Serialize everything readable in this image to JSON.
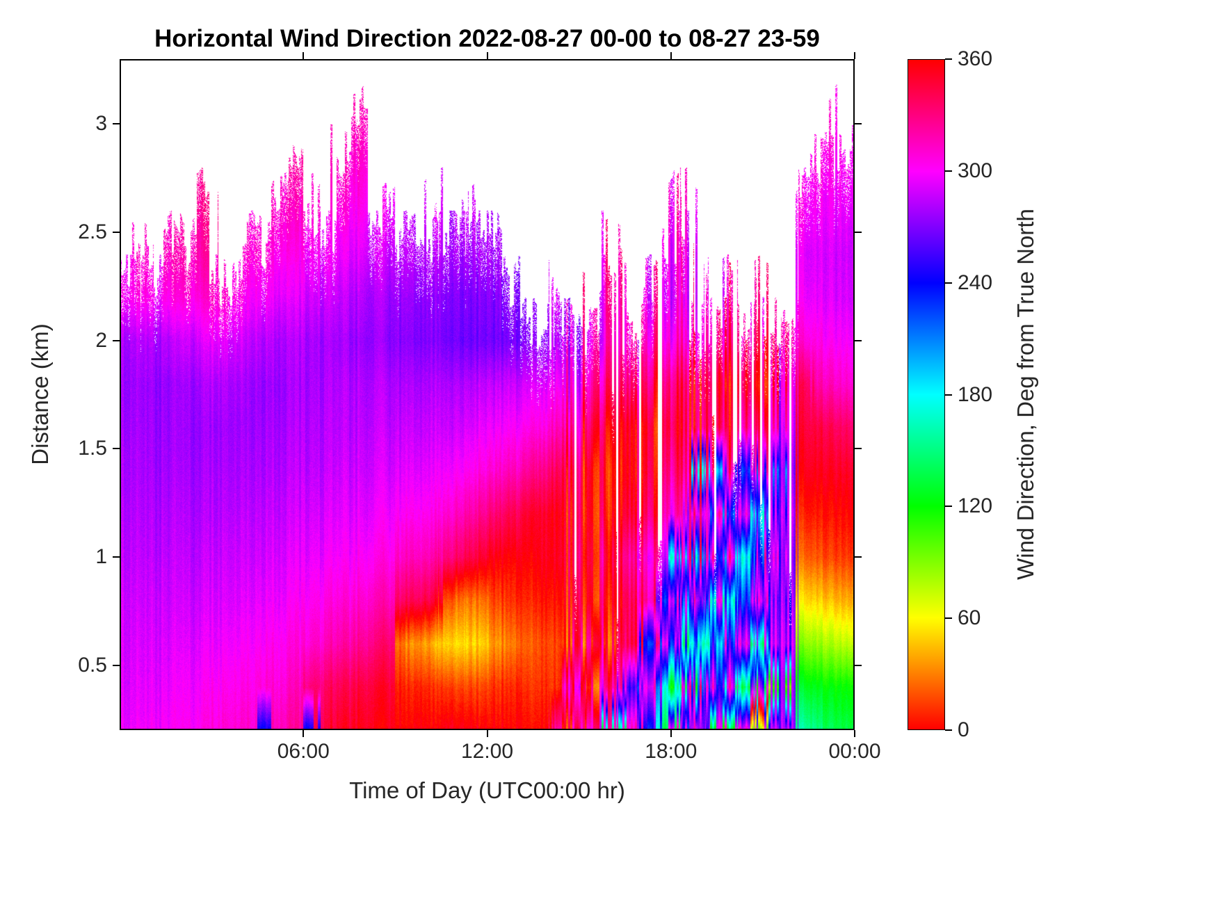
{
  "chart_data": {
    "type": "heatmap",
    "title": "Horizontal Wind Direction 2022-08-27 00-00 to 08-27 23-59",
    "xlabel": "Time of Day (UTC00:00 hr)",
    "ylabel": "Distance (km)",
    "colorbar_label": "Wind Direction, Deg from True North",
    "colormap": "hsv",
    "grid_on": false,
    "xlim_hours": [
      0,
      24
    ],
    "ylim": [
      0.2,
      3.3
    ],
    "clim": [
      0,
      360
    ],
    "x_ticks": [
      {
        "hour": 6,
        "label": "06:00"
      },
      {
        "hour": 12,
        "label": "12:00"
      },
      {
        "hour": 18,
        "label": "18:00"
      },
      {
        "hour": 24,
        "label": "00:00"
      }
    ],
    "y_ticks": [
      {
        "value": 0.5,
        "label": "0.5"
      },
      {
        "value": 1,
        "label": "1"
      },
      {
        "value": 1.5,
        "label": "1.5"
      },
      {
        "value": 2,
        "label": "2"
      },
      {
        "value": 2.5,
        "label": "2.5"
      },
      {
        "value": 3,
        "label": "3"
      }
    ],
    "colorbar_ticks": [
      {
        "value": 0,
        "label": "0"
      },
      {
        "value": 60,
        "label": "60"
      },
      {
        "value": 120,
        "label": "120"
      },
      {
        "value": 180,
        "label": "180"
      },
      {
        "value": 240,
        "label": "240"
      },
      {
        "value": 300,
        "label": "300"
      },
      {
        "value": 360,
        "label": "360"
      }
    ],
    "grid": {
      "note": "wind direction (deg from true north) sampled every 30 min (columns) and 0.2 km (rows, bottom 0.2 km to top 3.2 km); null = no data (white)",
      "x_start_hour": 0.25,
      "x_step_hours": 0.5,
      "y_start_km": 0.2,
      "y_step_km": 0.2,
      "columns": [
        [
          295,
          292,
          290,
          288,
          285,
          282,
          280,
          278,
          276,
          280,
          300,
          null,
          null,
          null,
          null,
          null
        ],
        [
          296,
          293,
          290,
          287,
          284,
          281,
          279,
          277,
          276,
          282,
          303,
          310,
          null,
          null,
          null,
          null
        ],
        [
          298,
          294,
          291,
          288,
          284,
          281,
          278,
          276,
          275,
          280,
          298,
          null,
          null,
          null,
          null,
          null
        ],
        [
          300,
          296,
          292,
          288,
          285,
          282,
          279,
          277,
          276,
          284,
          305,
          315,
          null,
          null,
          null,
          null
        ],
        [
          302,
          298,
          293,
          289,
          285,
          282,
          279,
          277,
          278,
          288,
          308,
          318,
          null,
          null,
          null,
          null
        ],
        [
          305,
          300,
          295,
          290,
          286,
          282,
          279,
          277,
          280,
          292,
          310,
          320,
          325,
          null,
          null,
          null
        ],
        [
          308,
          302,
          296,
          291,
          287,
          283,
          280,
          278,
          282,
          295,
          312,
          null,
          null,
          null,
          null,
          null
        ],
        [
          310,
          304,
          298,
          292,
          288,
          284,
          280,
          278,
          280,
          290,
          305,
          null,
          null,
          null,
          null,
          null
        ],
        [
          312,
          306,
          300,
          294,
          289,
          285,
          281,
          278,
          278,
          286,
          300,
          310,
          null,
          null,
          null,
          null
        ],
        [
          240,
          310,
          302,
          296,
          290,
          286,
          282,
          279,
          277,
          284,
          298,
          308,
          null,
          null,
          null,
          null
        ],
        [
          318,
          310,
          304,
          297,
          292,
          287,
          283,
          280,
          278,
          282,
          295,
          305,
          312,
          null,
          null,
          null
        ],
        [
          322,
          314,
          306,
          299,
          293,
          288,
          284,
          281,
          279,
          281,
          292,
          302,
          310,
          318,
          null,
          null
        ],
        [
          240,
          330,
          310,
          302,
          295,
          290,
          285,
          282,
          280,
          280,
          290,
          300,
          308,
          null,
          null,
          null
        ],
        [
          345,
          335,
          315,
          305,
          297,
          291,
          286,
          283,
          281,
          279,
          288,
          298,
          null,
          null,
          null,
          null
        ],
        [
          352,
          340,
          320,
          308,
          299,
          293,
          288,
          284,
          282,
          278,
          285,
          295,
          305,
          312,
          null,
          null
        ],
        [
          355,
          345,
          325,
          311,
          301,
          294,
          289,
          285,
          282,
          277,
          283,
          293,
          303,
          310,
          316,
          null
        ],
        [
          356,
          348,
          330,
          315,
          303,
          296,
          290,
          286,
          282,
          276,
          280,
          290,
          null,
          null,
          null,
          null
        ],
        [
          357,
          350,
          335,
          318,
          306,
          298,
          291,
          286,
          282,
          274,
          278,
          288,
          298,
          null,
          null,
          null
        ],
        [
          358,
          5,
          25,
          335,
          312,
          300,
          292,
          286,
          280,
          272,
          276,
          285,
          null,
          null,
          null,
          null
        ],
        [
          357,
          8,
          35,
          340,
          315,
          302,
          293,
          286,
          280,
          270,
          274,
          283,
          null,
          null,
          null,
          null
        ],
        [
          356,
          10,
          45,
          350,
          320,
          305,
          295,
          287,
          281,
          269,
          273,
          282,
          292,
          null,
          null,
          null
        ],
        [
          355,
          15,
          52,
          20,
          332,
          312,
          299,
          289,
          282,
          268,
          272,
          281,
          null,
          null,
          null,
          null
        ],
        [
          356,
          18,
          55,
          30,
          340,
          318,
          302,
          291,
          283,
          267,
          271,
          280,
          290,
          null,
          null,
          null
        ],
        [
          357,
          15,
          48,
          25,
          348,
          325,
          306,
          294,
          284,
          266,
          270,
          279,
          null,
          null,
          null,
          null
        ],
        [
          358,
          10,
          35,
          15,
          355,
          332,
          310,
          296,
          285,
          266,
          270,
          278,
          null,
          null,
          null,
          null
        ],
        [
          359,
          8,
          28,
          10,
          358,
          340,
          315,
          299,
          287,
          267,
          271,
          null,
          null,
          null,
          null,
          null
        ],
        [
          0,
          10,
          22,
          8,
          357,
          348,
          322,
          303,
          290,
          270,
          null,
          null,
          null,
          null,
          null,
          null
        ],
        [
          2,
          12,
          18,
          5,
          355,
          352,
          330,
          308,
          294,
          275,
          null,
          null,
          null,
          null,
          null,
          null
        ],
        [
          320,
          10,
          15,
          3,
          352,
          355,
          338,
          315,
          298,
          282,
          290,
          null,
          null,
          null,
          null,
          null
        ],
        [
          5,
          315,
          12,
          0,
          350,
          356,
          345,
          322,
          303,
          290,
          null,
          null,
          null,
          null,
          null,
          null
        ],
        [
          310,
          8,
          320,
          355,
          348,
          354,
          350,
          330,
          310,
          295,
          null,
          null,
          null,
          null,
          null,
          null
        ],
        [
          300,
          320,
          10,
          350,
          340,
          352,
          355,
          340,
          318,
          300,
          305,
          null,
          null,
          null,
          null,
          null
        ],
        [
          140,
          310,
          330,
          345,
          330,
          348,
          356,
          348,
          325,
          305,
          310,
          315,
          null,
          null,
          null,
          null
        ],
        [
          310,
          250,
          340,
          335,
          320,
          344,
          354,
          352,
          330,
          308,
          null,
          null,
          null,
          null,
          null,
          null
        ],
        [
          240,
          300,
          235,
          325,
          310,
          338,
          350,
          355,
          335,
          312,
          300,
          null,
          null,
          null,
          null,
          null
        ],
        [
          150,
          190,
          310,
          240,
          300,
          330,
          345,
          356,
          340,
          315,
          305,
          310,
          null,
          null,
          null,
          null
        ],
        [
          320,
          140,
          250,
          310,
          190,
          320,
          340,
          355,
          345,
          318,
          308,
          312,
          318,
          null,
          null,
          null
        ],
        [
          250,
          310,
          160,
          230,
          320,
          305,
          335,
          350,
          348,
          322,
          310,
          315,
          null,
          null,
          null,
          null
        ],
        [
          300,
          240,
          185,
          300,
          230,
          315,
          190,
          340,
          350,
          325,
          null,
          null,
          null,
          null,
          null,
          null
        ],
        [
          130,
          300,
          240,
          180,
          310,
          230,
          320,
          345,
          352,
          328,
          315,
          null,
          null,
          null,
          null,
          null
        ],
        [
          310,
          150,
          300,
          235,
          185,
          300,
          240,
          330,
          354,
          330,
          null,
          null,
          null,
          null,
          null,
          null
        ],
        [
          90,
          280,
          160,
          300,
          240,
          190,
          310,
          335,
          356,
          332,
          318,
          null,
          null,
          null,
          null,
          null
        ],
        [
          280,
          100,
          270,
          250,
          300,
          240,
          200,
          320,
          350,
          335,
          null,
          null,
          null,
          null,
          null,
          null
        ],
        [
          270,
          265,
          280,
          270,
          260,
          275,
          265,
          280,
          290,
          300,
          null,
          null,
          null,
          null,
          null,
          null
        ],
        [
          160,
          130,
          90,
          55,
          25,
          8,
          356,
          348,
          340,
          310,
          298,
          295,
          302,
          null,
          null,
          null
        ],
        [
          150,
          125,
          85,
          50,
          20,
          5,
          354,
          345,
          320,
          305,
          295,
          292,
          298,
          305,
          null,
          null
        ],
        [
          140,
          120,
          80,
          45,
          15,
          2,
          352,
          340,
          315,
          300,
          292,
          290,
          296,
          302,
          308,
          null
        ],
        [
          135,
          118,
          75,
          40,
          12,
          0,
          350,
          335,
          310,
          298,
          290,
          288,
          294,
          300,
          null,
          null
        ]
      ]
    }
  }
}
